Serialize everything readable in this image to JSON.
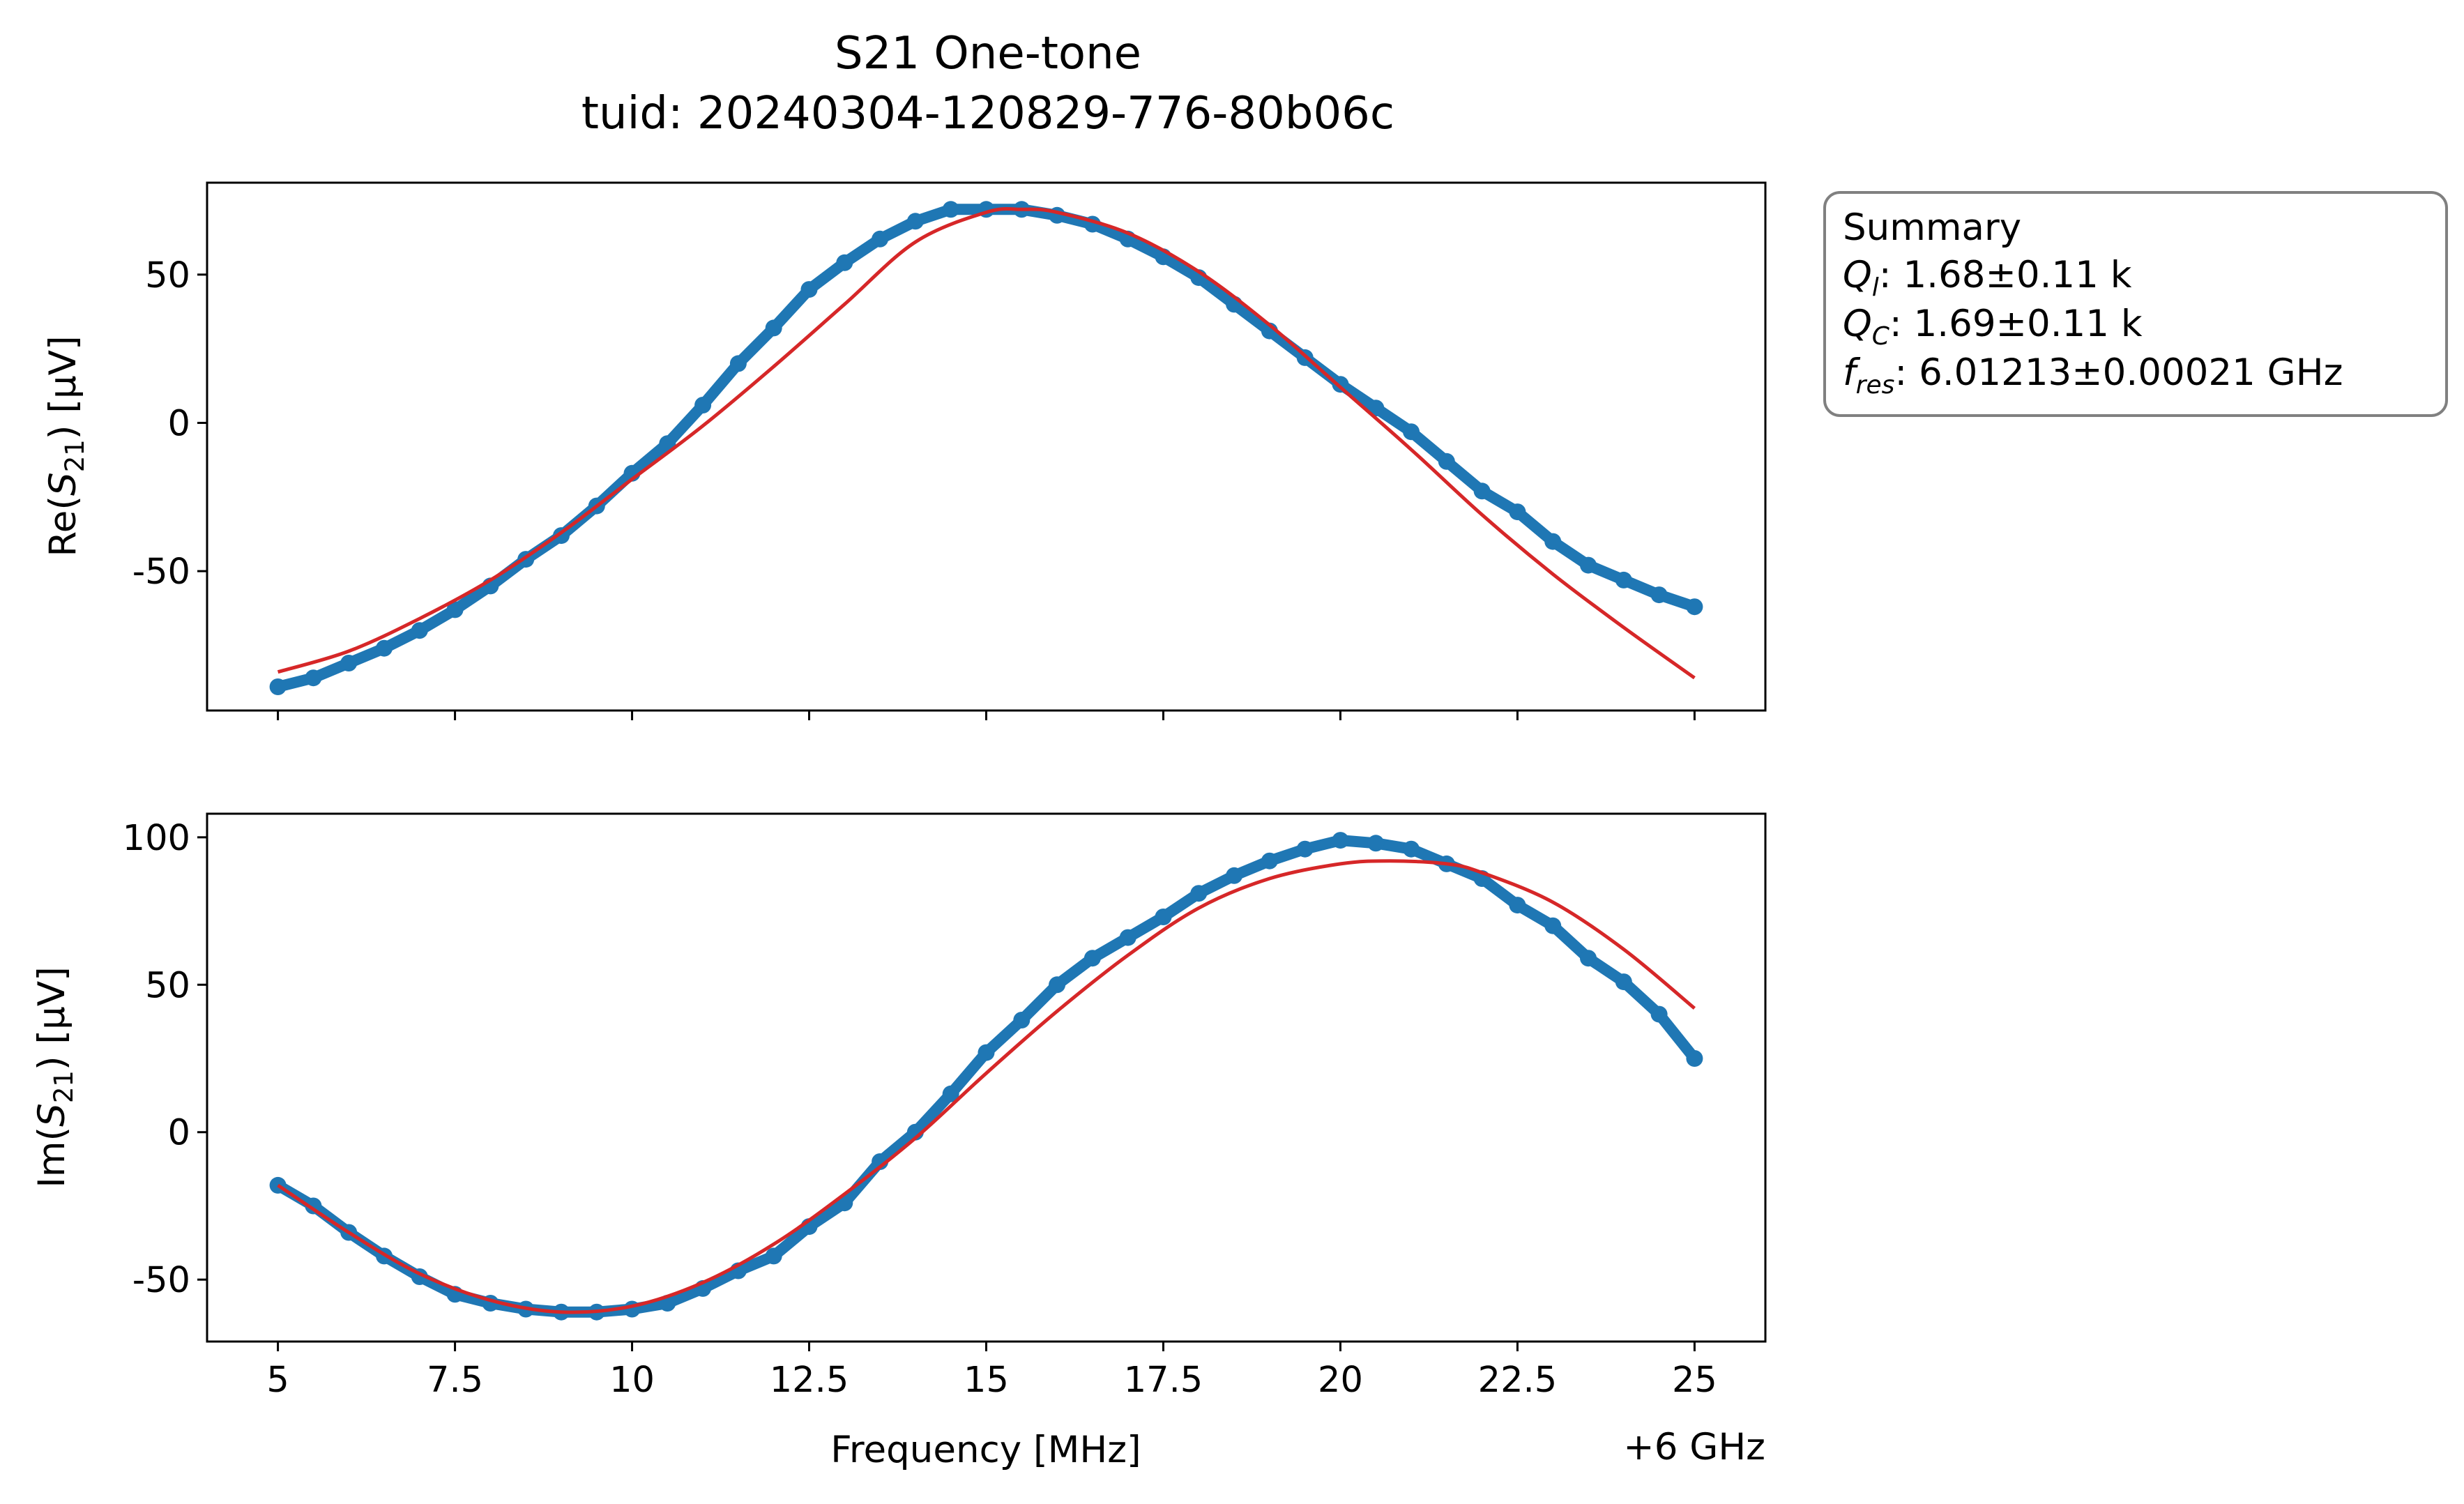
{
  "title": "S21 One-tone",
  "subtitle": "tuid: 20240304-120829-776-80b06c",
  "summary": {
    "heading": "Summary",
    "ql_symbol": "Q",
    "ql_sub": "l",
    "ql_value": ": 1.68±0.11 k",
    "qc_symbol": "Q",
    "qc_sub": "C",
    "qc_value": ": 1.69±0.11 k",
    "fres_symbol": "f",
    "fres_sub": "res",
    "fres_value": ": 6.01213±0.00021 GHz"
  },
  "colors": {
    "data": "#1f77b4",
    "fit": "#d62728"
  },
  "chart_data": [
    {
      "type": "scatter",
      "xlabel": "Frequency [MHz]",
      "ylabel_pre": "Re(",
      "ylabel_sym": "S",
      "ylabel_sub": "21",
      "ylabel_post": ") [µV]",
      "xlim": [
        4,
        26
      ],
      "ylim": [
        -97,
        81
      ],
      "xticks": [
        5,
        7.5,
        10,
        12.5,
        15,
        17.5,
        20,
        22.5,
        25
      ],
      "yticks": [
        50,
        0,
        -50
      ],
      "ytick_labels": [
        "50",
        "0",
        "-50"
      ],
      "series": [
        {
          "role": "data",
          "x": [
            5.0,
            5.5,
            6.0,
            6.5,
            7.0,
            7.5,
            8.0,
            8.5,
            9.0,
            9.5,
            10.0,
            10.5,
            11.0,
            11.5,
            12.0,
            12.5,
            13.0,
            13.5,
            14.0,
            14.5,
            15.0,
            15.5,
            16.0,
            16.5,
            17.0,
            17.5,
            18.0,
            18.5,
            19.0,
            19.5,
            20.0,
            20.5,
            21.0,
            21.5,
            22.0,
            22.5,
            23.0,
            23.5,
            24.0,
            24.5,
            25.0
          ],
          "y": [
            -89,
            -86,
            -81,
            -76,
            -70,
            -63,
            -55,
            -46,
            -38,
            -28,
            -17,
            -7,
            6,
            20,
            32,
            45,
            54,
            62,
            68,
            72,
            72,
            72,
            70,
            67,
            62,
            56,
            49,
            40,
            31,
            22,
            13,
            5,
            -3,
            -13,
            -23,
            -30,
            -40,
            -48,
            -53,
            -58,
            -62
          ]
        },
        {
          "role": "fit",
          "x": [
            5.0,
            6.0,
            7.0,
            8.0,
            9.0,
            10.0,
            11.0,
            12.0,
            13.0,
            14.0,
            15.0,
            15.5,
            16.0,
            17.0,
            18.0,
            19.0,
            20.0,
            21.0,
            22.0,
            23.0,
            24.0,
            25.0
          ],
          "y": [
            -84,
            -77,
            -66,
            -53,
            -37,
            -19,
            -1,
            19,
            40,
            61,
            71,
            72,
            71,
            64,
            51,
            33,
            12,
            -9,
            -31,
            -51,
            -69,
            -86
          ]
        }
      ]
    },
    {
      "type": "scatter",
      "xlabel": "Frequency [MHz]",
      "xtick_offset": "+6 GHz",
      "ylabel_pre": "Im(",
      "ylabel_sym": "S",
      "ylabel_sub": "21",
      "ylabel_post": ") [µV]",
      "xlim": [
        4,
        26
      ],
      "ylim": [
        -71,
        108
      ],
      "xticks": [
        5,
        7.5,
        10,
        12.5,
        15,
        17.5,
        20,
        22.5,
        25
      ],
      "xtick_labels": [
        "5",
        "7.5",
        "10",
        "12.5",
        "15",
        "17.5",
        "20",
        "22.5",
        "25"
      ],
      "yticks": [
        100,
        50,
        0,
        -50
      ],
      "ytick_labels": [
        "100",
        "50",
        "0",
        "-50"
      ],
      "series": [
        {
          "role": "data",
          "x": [
            5.0,
            5.5,
            6.0,
            6.5,
            7.0,
            7.5,
            8.0,
            8.5,
            9.0,
            9.5,
            10.0,
            10.5,
            11.0,
            11.5,
            12.0,
            12.5,
            13.0,
            13.5,
            14.0,
            14.5,
            15.0,
            15.5,
            16.0,
            16.5,
            17.0,
            17.5,
            18.0,
            18.5,
            19.0,
            19.5,
            20.0,
            20.5,
            21.0,
            21.5,
            22.0,
            22.5,
            23.0,
            23.5,
            24.0,
            24.5,
            25.0
          ],
          "y": [
            -18,
            -25,
            -34,
            -42,
            -49,
            -55,
            -58,
            -60,
            -61,
            -61,
            -60,
            -58,
            -53,
            -47,
            -42,
            -32,
            -24,
            -10,
            0,
            13,
            27,
            38,
            50,
            59,
            66,
            73,
            81,
            87,
            92,
            96,
            99,
            98,
            96,
            91,
            86,
            77,
            70,
            59,
            51,
            40,
            25
          ]
        },
        {
          "role": "fit",
          "x": [
            5.0,
            6.0,
            7.0,
            8.0,
            9.0,
            10.0,
            11.0,
            12.0,
            13.0,
            14.0,
            15.0,
            16.0,
            17.0,
            18.0,
            19.0,
            20.0,
            20.7,
            21.5,
            22.0,
            23.0,
            24.0,
            25.0
          ],
          "y": [
            -18,
            -34,
            -48,
            -57,
            -61,
            -59,
            -51,
            -38,
            -21,
            -2,
            20,
            41,
            60,
            76,
            86,
            91,
            92,
            91,
            88,
            78,
            62,
            42
          ]
        }
      ]
    }
  ]
}
